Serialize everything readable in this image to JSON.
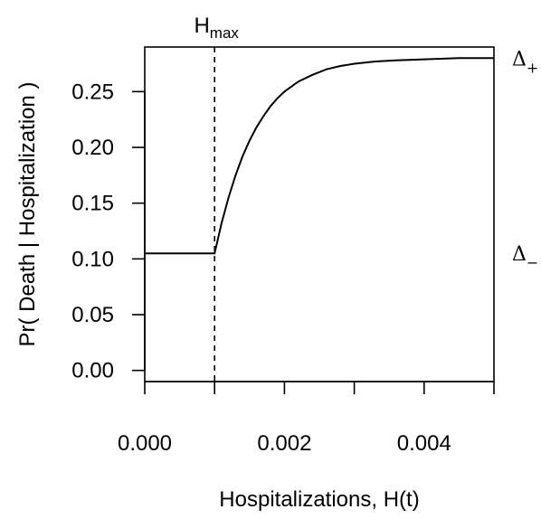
{
  "chart_data": {
    "type": "line",
    "xlabel": "Hospitalizations, H(t)",
    "ylabel": "Pr( Death | Hospitalization )",
    "xlim": [
      0,
      0.005
    ],
    "ylim": [
      -0.01,
      0.29
    ],
    "x_ticks": [
      0.0,
      0.001,
      0.002,
      0.003,
      0.004,
      0.005
    ],
    "x_tick_labels": [
      "0.000",
      "",
      "0.002",
      "",
      "0.004",
      ""
    ],
    "y_ticks": [
      0.0,
      0.05,
      0.1,
      0.15,
      0.2,
      0.25
    ],
    "y_tick_labels": [
      "0.00",
      "0.05",
      "0.10",
      "0.15",
      "0.20",
      "0.25"
    ],
    "grid": false,
    "series": [
      {
        "x": [
          0.0,
          0.001,
          0.0011,
          0.0012,
          0.0013,
          0.0014,
          0.0015,
          0.0016,
          0.0017,
          0.0018,
          0.0019,
          0.002,
          0.0022,
          0.0024,
          0.0026,
          0.0028,
          0.003,
          0.0033,
          0.0036,
          0.004,
          0.0045,
          0.005
        ],
        "y": [
          0.105,
          0.105,
          0.132,
          0.155,
          0.175,
          0.192,
          0.206,
          0.218,
          0.228,
          0.237,
          0.244,
          0.25,
          0.259,
          0.265,
          0.27,
          0.273,
          0.275,
          0.277,
          0.278,
          0.279,
          0.28,
          0.28
        ]
      }
    ],
    "vline": {
      "x": 0.001,
      "style": "dashed",
      "label": "H",
      "label_sub": "max"
    },
    "annotations": [
      {
        "text": "Δ",
        "sub": "+",
        "y": 0.28
      },
      {
        "text": "Δ",
        "sub": "−",
        "y": 0.105
      }
    ]
  }
}
